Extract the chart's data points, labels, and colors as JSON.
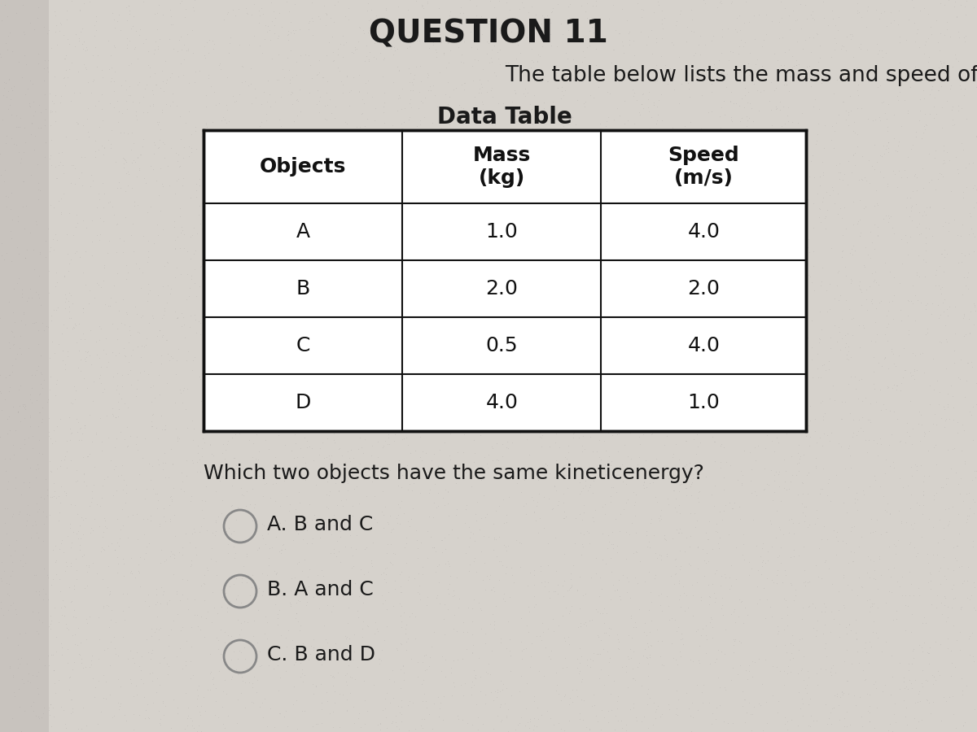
{
  "background_color": "#c8c3be",
  "page_color": "#d9d5d0",
  "intro_text": "The table below lists the mass and speed of each of four ",
  "partial_header_text": "QUESTION 11",
  "table_title": "Data Table",
  "col_headers": [
    "Objects",
    "Mass\n(kg)",
    "Speed\n(m/s)"
  ],
  "rows": [
    [
      "A",
      "1.0",
      "4.0"
    ],
    [
      "B",
      "2.0",
      "2.0"
    ],
    [
      "C",
      "0.5",
      "4.0"
    ],
    [
      "D",
      "4.0",
      "1.0"
    ]
  ],
  "question_text": "Which two objects have the same kineticenergy?",
  "choices": [
    "A. B and C",
    "B. A and C",
    "C. B and D"
  ],
  "header_fontsize": 18,
  "cell_fontsize": 18,
  "title_fontsize": 20,
  "intro_fontsize": 19,
  "question_fontsize": 18,
  "choice_fontsize": 18,
  "partial_header_fontsize": 28
}
